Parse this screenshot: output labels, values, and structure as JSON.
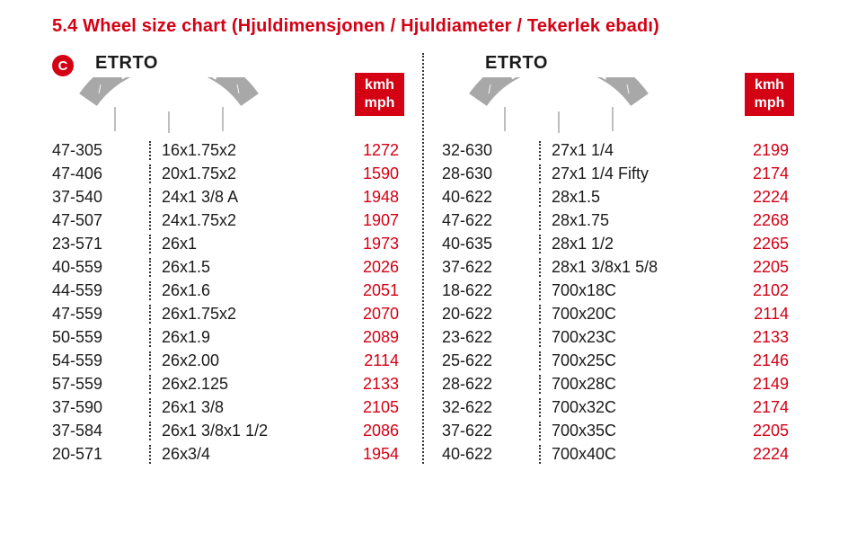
{
  "title": "5.4 Wheel size chart (Hjuldimensjonen / Hjuldiameter / Tekerlek ebadı)",
  "colors": {
    "accent": "#d40014",
    "text": "#1a1a1a",
    "tire_fill": "#a8a8a8",
    "tire_text": "#ffffff",
    "background": "#ffffff"
  },
  "typography": {
    "title_size": 20,
    "header_size": 20,
    "row_size": 18,
    "unit_size": 16
  },
  "badge_letter": "C",
  "etrto_header": "ETRTO",
  "tire_label": "16 x 1.75 x 2",
  "unit_label_1": "kmh",
  "unit_label_2": "mph",
  "left": {
    "rows": [
      {
        "etrto": "47-305",
        "size": "16x1.75x2",
        "val": "1272"
      },
      {
        "etrto": "47-406",
        "size": "20x1.75x2",
        "val": "1590"
      },
      {
        "etrto": "37-540",
        "size": "24x1 3/8 A",
        "val": "1948"
      },
      {
        "etrto": "47-507",
        "size": "24x1.75x2",
        "val": "1907"
      },
      {
        "etrto": "23-571",
        "size": "26x1",
        "val": "1973"
      },
      {
        "etrto": "40-559",
        "size": "26x1.5",
        "val": "2026"
      },
      {
        "etrto": "44-559",
        "size": "26x1.6",
        "val": "2051"
      },
      {
        "etrto": "47-559",
        "size": "26x1.75x2",
        "val": "2070"
      },
      {
        "etrto": "50-559",
        "size": "26x1.9",
        "val": "2089"
      },
      {
        "etrto": "54-559",
        "size": "26x2.00",
        "val": "2114"
      },
      {
        "etrto": "57-559",
        "size": "26x2.125",
        "val": "2133"
      },
      {
        "etrto": "37-590",
        "size": "26x1 3/8",
        "val": "2105"
      },
      {
        "etrto": "37-584",
        "size": "26x1 3/8x1 1/2",
        "val": "2086"
      },
      {
        "etrto": "20-571",
        "size": "26x3/4",
        "val": "1954"
      }
    ]
  },
  "right": {
    "rows": [
      {
        "etrto": "32-630",
        "size": "27x1 1/4",
        "val": "2199"
      },
      {
        "etrto": "28-630",
        "size": "27x1 1/4 Fifty",
        "val": "2174"
      },
      {
        "etrto": "40-622",
        "size": "28x1.5",
        "val": "2224"
      },
      {
        "etrto": "47-622",
        "size": "28x1.75",
        "val": "2268"
      },
      {
        "etrto": "40-635",
        "size": "28x1 1/2",
        "val": "2265"
      },
      {
        "etrto": "37-622",
        "size": "28x1 3/8x1 5/8",
        "val": "2205"
      },
      {
        "etrto": "18-622",
        "size": "700x18C",
        "val": "2102"
      },
      {
        "etrto": "20-622",
        "size": "700x20C",
        "val": "2114"
      },
      {
        "etrto": "23-622",
        "size": "700x23C",
        "val": "2133"
      },
      {
        "etrto": "25-622",
        "size": "700x25C",
        "val": "2146"
      },
      {
        "etrto": "28-622",
        "size": "700x28C",
        "val": "2149"
      },
      {
        "etrto": "32-622",
        "size": "700x32C",
        "val": "2174"
      },
      {
        "etrto": "37-622",
        "size": "700x35C",
        "val": "2205"
      },
      {
        "etrto": "40-622",
        "size": "700x40C",
        "val": "2224"
      }
    ]
  }
}
